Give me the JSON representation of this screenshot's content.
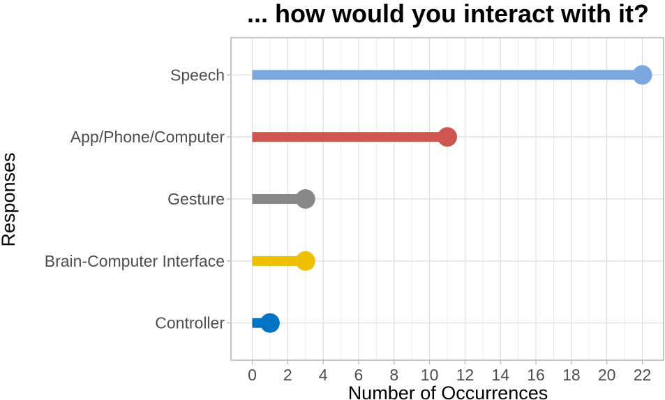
{
  "chart_data": {
    "type": "lollipop",
    "title": "... how would you interact with it?",
    "xlabel": "Number of Occurrences",
    "ylabel": "Responses",
    "xlim": [
      -1.2,
      23.2
    ],
    "x_ticks": [
      0,
      2,
      4,
      6,
      8,
      10,
      12,
      14,
      16,
      18,
      20,
      22
    ],
    "grid": true,
    "legend": "none",
    "categories": [
      "Speech",
      "App/Phone/Computer",
      "Gesture",
      "Brain-Computer Interface",
      "Controller"
    ],
    "values": [
      22,
      11,
      3,
      3,
      1
    ],
    "colors": [
      "#7ba7de",
      "#cd5650",
      "#878787",
      "#efc000",
      "#0073c2"
    ]
  }
}
